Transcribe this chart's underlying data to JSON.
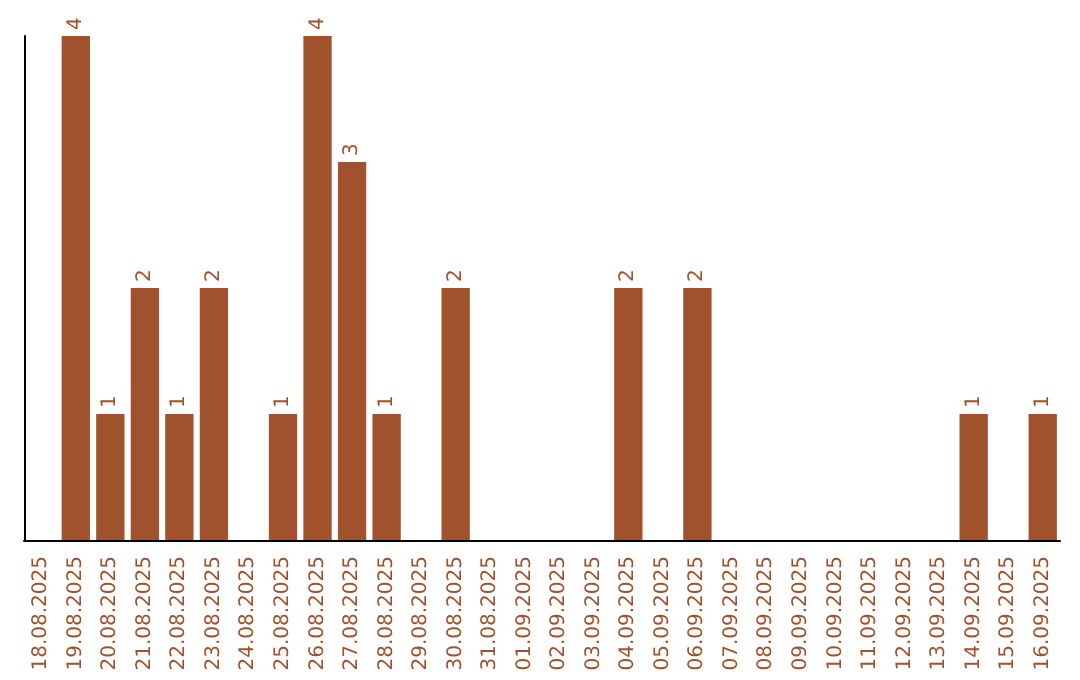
{
  "chart_data": {
    "type": "bar",
    "categories": [
      "18.08.2025",
      "19.08.2025",
      "20.08.2025",
      "21.08.2025",
      "22.08.2025",
      "23.08.2025",
      "24.08.2025",
      "25.08.2025",
      "26.08.2025",
      "27.08.2025",
      "28.08.2025",
      "29.08.2025",
      "30.08.2025",
      "31.08.2025",
      "01.09.2025",
      "02.09.2025",
      "03.09.2025",
      "04.09.2025",
      "05.09.2025",
      "06.09.2025",
      "07.09.2025",
      "08.09.2025",
      "09.09.2025",
      "10.09.2025",
      "11.09.2025",
      "12.09.2025",
      "13.09.2025",
      "14.09.2025",
      "15.09.2025",
      "16.09.2025"
    ],
    "values": [
      0,
      4,
      1,
      2,
      1,
      2,
      0,
      1,
      4,
      3,
      1,
      0,
      2,
      0,
      0,
      0,
      0,
      2,
      0,
      2,
      0,
      0,
      0,
      0,
      0,
      0,
      0,
      1,
      0,
      1
    ],
    "value_labels": [
      null,
      "4",
      "1",
      "2",
      "1",
      "2",
      null,
      "1",
      "4",
      "3",
      "1",
      null,
      "2",
      null,
      null,
      null,
      null,
      "2",
      null,
      "2",
      null,
      null,
      null,
      null,
      null,
      null,
      null,
      "1",
      null,
      "1"
    ],
    "color": "#a0522d",
    "grid": false,
    "tick_labels": "x"
  }
}
